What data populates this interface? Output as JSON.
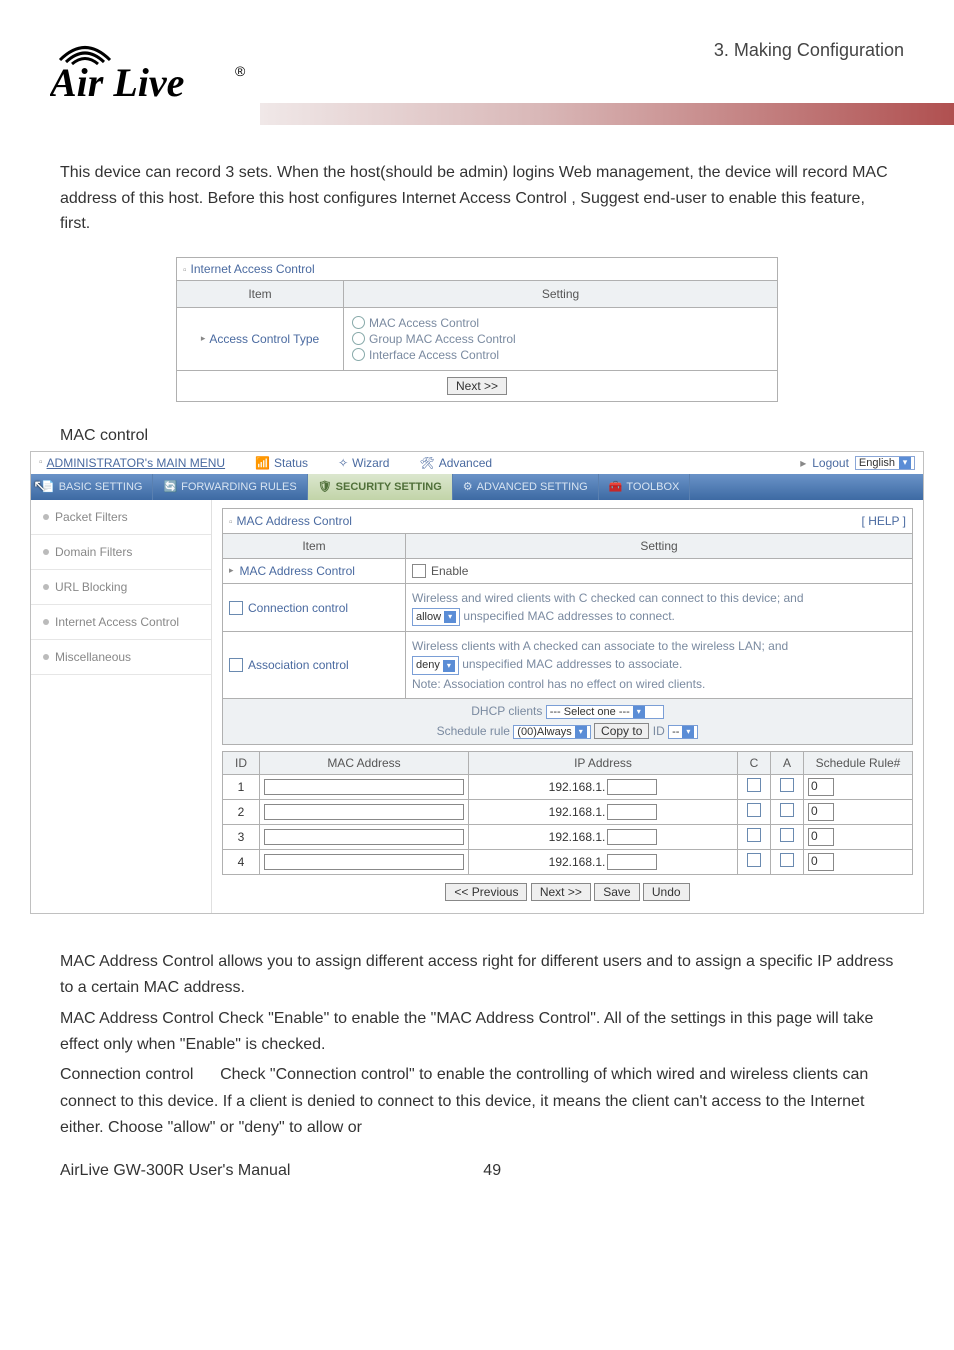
{
  "header": {
    "section_title": "3.  Making  Configuration",
    "logo_top": "Air Live",
    "logo_reg": "®"
  },
  "intro": {
    "p1": "This device can record 3 sets. When the host(should be admin) logins Web management, the device will record MAC address of this host. Before this host configures Internet Access Control , Suggest end-user to enable this feature, first."
  },
  "iac": {
    "title": "Internet Access Control",
    "col_item": "Item",
    "col_setting": "Setting",
    "row_label": "Access Control Type",
    "opt1": "MAC Access Control",
    "opt2": "Group MAC Access Control",
    "opt3": "Interface Access Control",
    "next_btn": "Next >>"
  },
  "subhead": "MAC control",
  "admin": {
    "menu_title": "ADMINISTRATOR's MAIN MENU",
    "nav_status": "Status",
    "nav_wizard": "Wizard",
    "nav_advanced": "Advanced",
    "logout": "Logout",
    "language": "English",
    "tabs": {
      "basic": "BASIC SETTING",
      "forwarding": "FORWARDING RULES",
      "security": "SECURITY SETTING",
      "advset": "ADVANCED SETTING",
      "toolbox": "TOOLBOX"
    },
    "sidebar": {
      "packet": "Packet Filters",
      "domain": "Domain Filters",
      "url": "URL Blocking",
      "iac": "Internet Access Control",
      "misc": "Miscellaneous"
    },
    "mac": {
      "panel_title": "MAC Address Control",
      "help": "[ HELP ]",
      "col_item": "Item",
      "col_setting": "Setting",
      "row_mac_ctrl": "MAC Address Control",
      "enable": "Enable",
      "row_conn": "Connection control",
      "conn_desc1": "Wireless and wired clients with C checked can connect to this device; and",
      "conn_sel": "allow",
      "conn_desc2": "unspecified MAC addresses to connect.",
      "row_assoc": "Association control",
      "assoc_desc1": "Wireless clients with A checked can associate to the wireless LAN; and",
      "assoc_sel": "deny",
      "assoc_desc2": "unspecified MAC addresses to associate.",
      "assoc_note": "Note: Association control has no effect on wired clients.",
      "dhcp_label": "DHCP clients",
      "dhcp_sel": "--- Select one ---",
      "sched_label": "Schedule rule",
      "sched_sel": "(00)Always",
      "copyto": "Copy to",
      "id_label": "ID",
      "id_sel": "--",
      "tbl": {
        "id": "ID",
        "mac": "MAC Address",
        "ip": "IP Address",
        "c": "C",
        "a": "A",
        "sched": "Schedule Rule#",
        "ip_prefix": "192.168.1.",
        "zero": "0",
        "rows": [
          "1",
          "2",
          "3",
          "4"
        ]
      },
      "btn_prev": "<< Previous",
      "btn_next": "Next >>",
      "btn_save": "Save",
      "btn_undo": "Undo"
    }
  },
  "footer": {
    "p1": "MAC Address Control allows you to assign different access right for different users and to assign a specific IP address to a certain MAC address.",
    "p2": "MAC Address Control  Check \"Enable\" to enable the \"MAC Address Control\". All of the settings in this page will take effect only when \"Enable\" is checked.",
    "p3": "Connection control      Check \"Connection control\" to enable the controlling of which wired and wireless clients can connect to this device. If a client is denied to connect to this device, it means the client can't access to the Internet either. Choose \"allow\" or \"deny\" to allow or",
    "manual": "AirLive GW-300R User's Manual",
    "page": "49"
  }
}
